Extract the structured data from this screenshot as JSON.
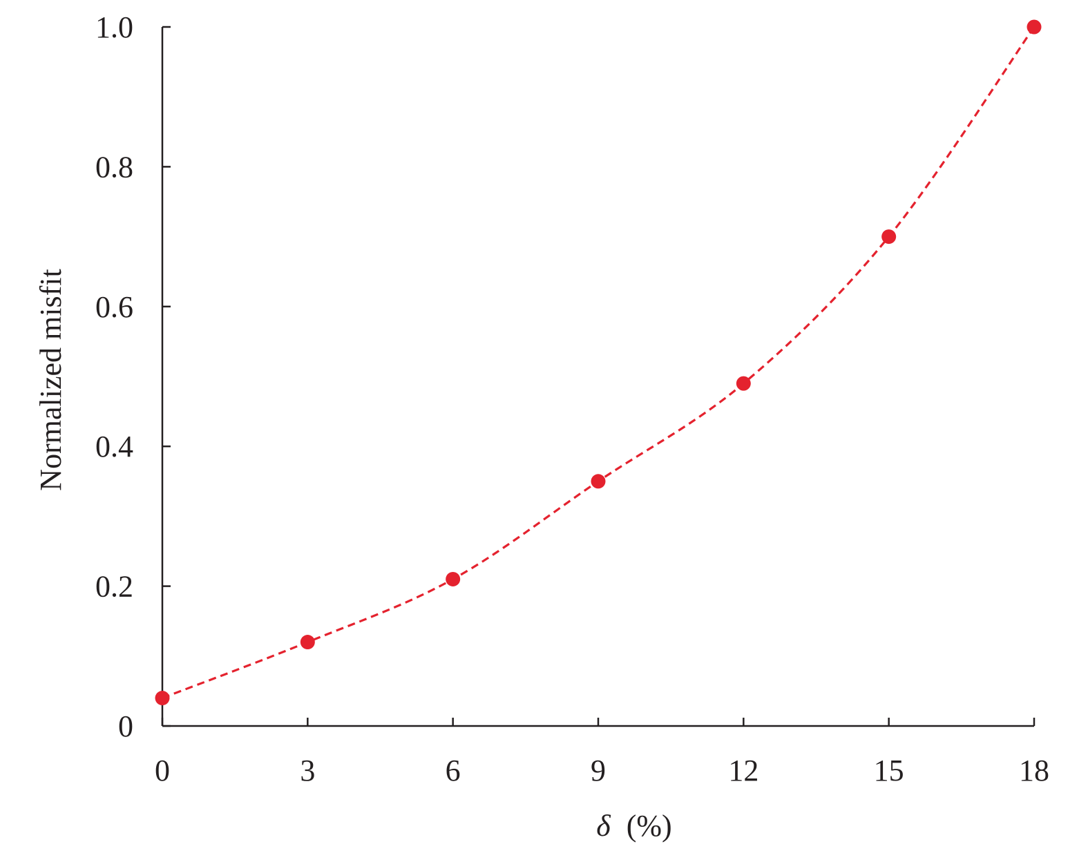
{
  "chart_data": {
    "type": "line",
    "title": "",
    "xlabel_symbol": "δ",
    "xlabel_unit": "(%)",
    "ylabel": "Normalized misfit",
    "xlim": [
      0,
      18
    ],
    "ylim": [
      0,
      1.0
    ],
    "x_ticks": [
      0,
      3,
      6,
      9,
      12,
      15,
      18
    ],
    "x_tick_labels": [
      "0",
      "3",
      "6",
      "9",
      "12",
      "15",
      "18"
    ],
    "y_ticks": [
      0,
      0.2,
      0.4,
      0.6,
      0.8,
      1.0
    ],
    "y_tick_labels": [
      "0",
      "0.2",
      "0.4",
      "0.6",
      "0.8",
      "1.0"
    ],
    "grid": false,
    "series": [
      {
        "x": [
          0,
          3,
          6,
          9,
          12,
          15,
          18
        ],
        "y": [
          0.04,
          0.12,
          0.21,
          0.35,
          0.49,
          0.7,
          1.0
        ],
        "color": "#e4222e",
        "line_style": "dashed",
        "marker": "circle"
      }
    ]
  }
}
